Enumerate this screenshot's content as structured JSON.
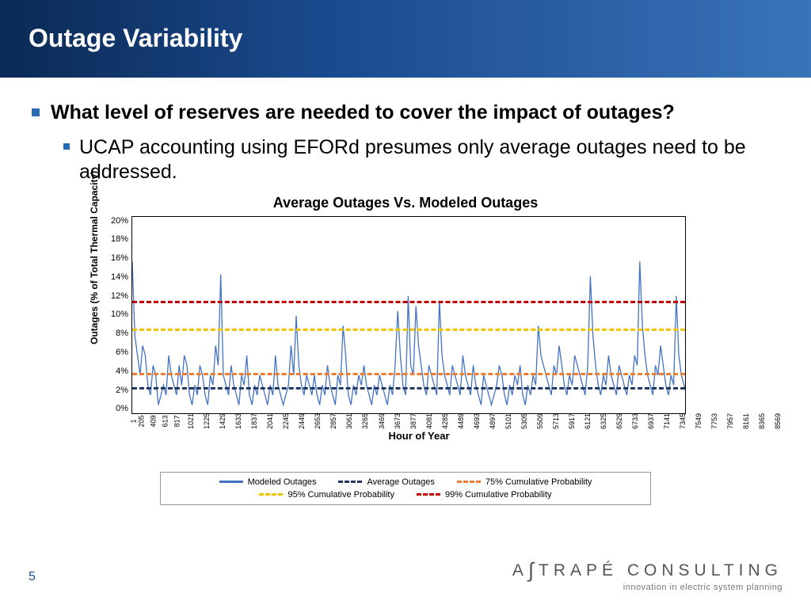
{
  "header": {
    "title": "Outage Variability"
  },
  "bullets": {
    "main": "What level of reserves are needed to cover the impact of outages?",
    "sub": "UCAP accounting using EFORd presumes only average outages need to be addressed."
  },
  "chart": {
    "type": "line",
    "title": "Average Outages Vs. Modeled Outages",
    "ylabel": "Outages (% of Total Thermal Capacity)",
    "xlabel": "Hour of Year",
    "ylim": [
      0,
      20
    ],
    "ytick_step": 2,
    "yticks": [
      "20%",
      "18%",
      "16%",
      "14%",
      "12%",
      "10%",
      "8%",
      "6%",
      "4%",
      "2%",
      "0%"
    ],
    "xticks": [
      "1",
      "205",
      "409",
      "613",
      "817",
      "1021",
      "1225",
      "1429",
      "1633",
      "1837",
      "2041",
      "2245",
      "2449",
      "2653",
      "2857",
      "3061",
      "3265",
      "3469",
      "3673",
      "3877",
      "4081",
      "4285",
      "4489",
      "4693",
      "4897",
      "5101",
      "5305",
      "5509",
      "5713",
      "5917",
      "6121",
      "6325",
      "6529",
      "6733",
      "6937",
      "7141",
      "7345",
      "7549",
      "7753",
      "7957",
      "8161",
      "8365",
      "8569"
    ],
    "series_color": "#4472c4",
    "series": [
      15.5,
      8,
      6,
      4,
      7,
      6,
      3,
      2,
      5,
      4,
      1,
      2,
      3,
      2,
      6,
      4,
      3,
      2,
      5,
      3,
      6,
      5,
      2,
      1,
      3,
      2,
      5,
      4,
      2,
      1,
      4,
      3,
      7,
      5,
      14.2,
      4,
      3,
      2,
      5,
      3,
      2,
      1,
      4,
      3,
      6,
      2,
      1,
      3,
      2,
      4,
      3,
      2,
      1,
      3,
      2,
      6,
      3,
      2,
      1,
      2,
      3,
      7,
      4,
      10,
      5,
      3,
      2,
      4,
      3,
      2,
      4,
      2,
      1,
      3,
      2,
      5,
      3,
      2,
      1,
      4,
      3,
      9,
      6,
      2,
      1,
      3,
      2,
      4,
      3,
      5,
      3,
      2,
      1,
      3,
      2,
      4,
      3,
      2,
      1,
      3,
      2,
      5,
      10.5,
      6,
      3,
      2,
      12,
      5,
      4,
      11,
      7,
      5,
      3,
      2,
      5,
      4,
      3,
      2,
      11.5,
      6,
      4,
      3,
      2,
      5,
      4,
      3,
      2,
      6,
      4,
      3,
      2,
      5,
      3,
      2,
      1,
      4,
      3,
      2,
      1,
      2,
      3,
      5,
      4,
      2,
      1,
      3,
      2,
      4,
      3,
      5,
      2,
      1,
      3,
      2,
      4,
      3,
      9,
      6,
      5,
      4,
      3,
      2,
      5,
      4,
      7,
      5,
      3,
      2,
      4,
      3,
      6,
      5,
      4,
      3,
      2,
      5,
      14,
      8,
      5,
      3,
      2,
      4,
      3,
      6,
      4,
      3,
      2,
      5,
      4,
      3,
      2,
      4,
      3,
      6,
      5,
      15.5,
      9,
      6,
      4,
      3,
      2,
      5,
      4,
      7,
      5,
      3,
      2,
      4,
      3,
      12,
      6,
      4,
      3,
      2
    ],
    "reference_lines": [
      {
        "label": "Average Outages",
        "value": 2.8,
        "color": "#1f3864",
        "dash": "8,6"
      },
      {
        "label": "75% Cumulative Probability",
        "value": 4.2,
        "color": "#ed7d31",
        "dash": "8,6"
      },
      {
        "label": "95% Cumulative Probability",
        "value": 8.7,
        "color": "#f2c400",
        "dash": "8,6"
      },
      {
        "label": "99% Cumulative Probability",
        "value": 11.5,
        "color": "#c00000",
        "dash": "8,6"
      }
    ],
    "legend": [
      {
        "label": "Modeled Outages",
        "color": "#4472c4",
        "style": "solid"
      },
      {
        "label": "Average Outages",
        "color": "#1f3864",
        "style": "dashed"
      },
      {
        "label": "75% Cumulative Probability",
        "color": "#ed7d31",
        "style": "dashed"
      },
      {
        "label": "95% Cumulative Probability",
        "color": "#f2c400",
        "style": "dashed"
      },
      {
        "label": "99% Cumulative Probability",
        "color": "#c00000",
        "style": "dashed"
      }
    ],
    "background_color": "#ffffff",
    "title_fontsize": 18,
    "label_fontsize": 12,
    "tick_fontsize": 10
  },
  "footer": {
    "page": "5",
    "logo_main": "A TRAPÉ CONSULTING",
    "logo_sub": "innovation in electric system planning"
  }
}
